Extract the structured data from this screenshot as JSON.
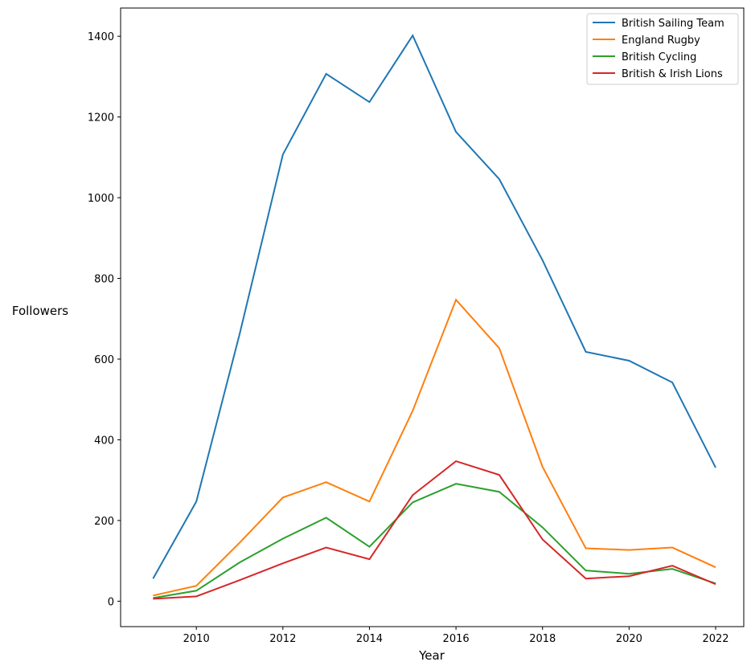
{
  "chart_data": {
    "type": "line",
    "title": "",
    "xlabel": "Year",
    "ylabel": "Followers",
    "x": [
      2009,
      2010,
      2011,
      2012,
      2013,
      2014,
      2015,
      2016,
      2017,
      2018,
      2019,
      2020,
      2021,
      2022
    ],
    "xlim": [
      2008.25,
      2022.65
    ],
    "ylim": [
      -63,
      1470
    ],
    "xticks": [
      2010,
      2012,
      2014,
      2016,
      2018,
      2020,
      2022
    ],
    "yticks": [
      0,
      200,
      400,
      600,
      800,
      1000,
      1200,
      1400
    ],
    "xtick_labels": [
      "2010",
      "2012",
      "2014",
      "2016",
      "2018",
      "2020",
      "2022"
    ],
    "ytick_labels": [
      "0",
      "200",
      "400",
      "600",
      "800",
      "1000",
      "1200",
      "1400"
    ],
    "grid": false,
    "legend_position": "top-right",
    "series": [
      {
        "name": "British Sailing Team",
        "color": "#1f77b4",
        "values": [
          56,
          247,
          662,
          1107,
          1307,
          1237,
          1402,
          1163,
          1046,
          845,
          618,
          596,
          542,
          331
        ]
      },
      {
        "name": "England Rugby",
        "color": "#ff7f0e",
        "values": [
          14,
          38,
          145,
          257,
          295,
          247,
          472,
          747,
          627,
          333,
          131,
          127,
          133,
          84
        ]
      },
      {
        "name": "British Cycling",
        "color": "#2ca02c",
        "values": [
          8,
          26,
          96,
          155,
          207,
          135,
          245,
          291,
          271,
          183,
          76,
          68,
          80,
          44
        ]
      },
      {
        "name": "British & Irish Lions",
        "color": "#d62728",
        "values": [
          6,
          12,
          52,
          94,
          133,
          104,
          263,
          347,
          313,
          153,
          56,
          62,
          88,
          42
        ]
      }
    ]
  }
}
